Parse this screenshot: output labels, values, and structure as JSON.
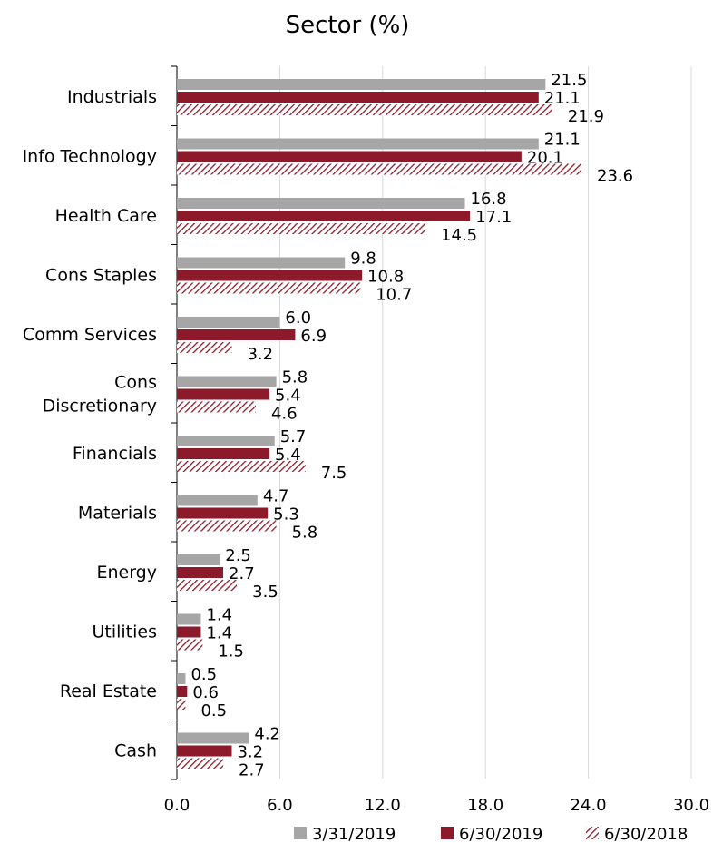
{
  "chart_data": {
    "type": "bar",
    "orientation": "horizontal",
    "title": "Sector (%)",
    "xlabel": "",
    "ylabel": "",
    "xlim": [
      0,
      30
    ],
    "xticks": [
      "0.0",
      "6.0",
      "12.0",
      "18.0",
      "24.0",
      "30.0"
    ],
    "grid": "vertical",
    "legend_position": "bottom",
    "categories": [
      [
        "Industrials"
      ],
      [
        "Info Technology"
      ],
      [
        "Health Care"
      ],
      [
        "Cons Staples"
      ],
      [
        "Comm Services"
      ],
      [
        "Cons",
        "Discretionary"
      ],
      [
        "Financials"
      ],
      [
        "Materials"
      ],
      [
        "Energy"
      ],
      [
        "Utilities"
      ],
      [
        "Real Estate"
      ],
      [
        "Cash"
      ]
    ],
    "series": [
      {
        "name": "3/31/2019",
        "color": "#a6a6a6",
        "pattern": "solid",
        "values": [
          21.5,
          21.1,
          16.8,
          9.8,
          6.0,
          5.8,
          5.7,
          4.7,
          2.5,
          1.4,
          0.5,
          4.2
        ],
        "labels": [
          "21.5",
          "21.1",
          "16.8",
          "9.8",
          "6.0",
          "5.8",
          "5.7",
          "4.7",
          "2.5",
          "1.4",
          "0.5",
          "4.2"
        ]
      },
      {
        "name": "6/30/2019",
        "color": "#8c1a2b",
        "pattern": "solid",
        "values": [
          21.1,
          20.1,
          17.1,
          10.8,
          6.9,
          5.4,
          5.4,
          5.3,
          2.7,
          1.4,
          0.6,
          3.2
        ],
        "labels": [
          "21.1",
          "20.1",
          "17.1",
          "10.8",
          "6.9",
          "5.4",
          "5.4",
          "5.3",
          "2.7",
          "1.4",
          "0.6",
          "3.2"
        ]
      },
      {
        "name": "6/30/2018",
        "color": "#8c1a2b",
        "pattern": "hatched",
        "values": [
          21.9,
          23.6,
          14.5,
          10.7,
          3.2,
          4.6,
          7.5,
          5.8,
          3.5,
          1.5,
          0.5,
          2.7
        ],
        "labels": [
          "21.9",
          "23.6",
          "14.5",
          "10.7",
          "3.2",
          "4.6",
          "7.5",
          "5.8",
          "3.5",
          "1.5",
          "0.5",
          "2.7"
        ]
      }
    ]
  }
}
